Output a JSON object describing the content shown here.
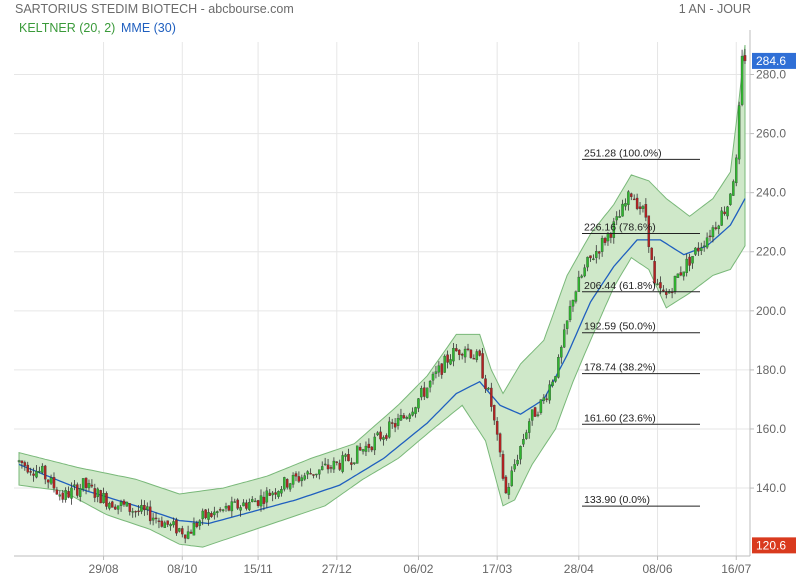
{
  "header": {
    "title": "SARTORIUS STEDIM BIOTECH - abcbourse.com",
    "period": "1 AN - JOUR"
  },
  "legend": {
    "keltner": {
      "label": "KELTNER (20, 2)",
      "color": "#3a9a3a"
    },
    "ema": {
      "label": "MME (30)",
      "color": "#1f5fbf"
    }
  },
  "colors": {
    "up": "#2fb52f",
    "down": "#b22222",
    "band_fill": "#cfe8c9",
    "band_line": "#79b879",
    "ema_line": "#1f5fbf",
    "price_tag_high": "#2f6fd6",
    "price_tag_low": "#d93a1e",
    "grid": "#e6e6e6"
  },
  "chart_data": {
    "type": "candlestick",
    "title": "SARTORIUS STEDIM BIOTECH",
    "period": "1 AN - JOUR",
    "ylim": [
      117,
      291
    ],
    "yticks": [
      140,
      160,
      180,
      200,
      220,
      240,
      260,
      280
    ],
    "ytick_labels": [
      "140.0",
      "160.0",
      "180.0",
      "200.0",
      "220.0",
      "240.0",
      "260.0",
      "280.0"
    ],
    "xticks": [
      {
        "label": "29/08",
        "index": 29
      },
      {
        "label": "08/10",
        "index": 56
      },
      {
        "label": "15/11",
        "index": 82
      },
      {
        "label": "27/12",
        "index": 109
      },
      {
        "label": "06/02",
        "index": 137
      },
      {
        "label": "17/03",
        "index": 164
      },
      {
        "label": "28/04",
        "index": 192
      },
      {
        "label": "08/06",
        "index": 219
      },
      {
        "label": "16/07",
        "index": 246
      }
    ],
    "n_sessions": 250,
    "price_labels": {
      "high": "284.6",
      "low": "120.6"
    },
    "anchors": [
      [
        0,
        149
      ],
      [
        8,
        145
      ],
      [
        15,
        137
      ],
      [
        22,
        141
      ],
      [
        30,
        136
      ],
      [
        38,
        133
      ],
      [
        45,
        131
      ],
      [
        52,
        127
      ],
      [
        58,
        125
      ],
      [
        63,
        130
      ],
      [
        72,
        133
      ],
      [
        82,
        136
      ],
      [
        92,
        142
      ],
      [
        100,
        145
      ],
      [
        112,
        149
      ],
      [
        122,
        156
      ],
      [
        132,
        164
      ],
      [
        140,
        174
      ],
      [
        148,
        185
      ],
      [
        153,
        188
      ],
      [
        158,
        183
      ],
      [
        162,
        168
      ],
      [
        165,
        150
      ],
      [
        167,
        138
      ],
      [
        170,
        148
      ],
      [
        175,
        163
      ],
      [
        180,
        170
      ],
      [
        185,
        182
      ],
      [
        190,
        205
      ],
      [
        195,
        216
      ],
      [
        200,
        223
      ],
      [
        205,
        230
      ],
      [
        210,
        240
      ],
      [
        215,
        232
      ],
      [
        218,
        208
      ],
      [
        222,
        205
      ],
      [
        226,
        212
      ],
      [
        232,
        220
      ],
      [
        238,
        228
      ],
      [
        243,
        236
      ],
      [
        246,
        250
      ],
      [
        248,
        284.6
      ]
    ],
    "keltner": {
      "period": 20,
      "multiplier": 2,
      "upper": [
        [
          0,
          152
        ],
        [
          20,
          147
        ],
        [
          40,
          143
        ],
        [
          55,
          138
        ],
        [
          70,
          140
        ],
        [
          85,
          144
        ],
        [
          100,
          150
        ],
        [
          115,
          155
        ],
        [
          130,
          168
        ],
        [
          140,
          178
        ],
        [
          150,
          192
        ],
        [
          158,
          192
        ],
        [
          162,
          180
        ],
        [
          166,
          172
        ],
        [
          172,
          182
        ],
        [
          180,
          190
        ],
        [
          188,
          212
        ],
        [
          196,
          226
        ],
        [
          204,
          236
        ],
        [
          210,
          246
        ],
        [
          216,
          244
        ],
        [
          222,
          238
        ],
        [
          230,
          232
        ],
        [
          238,
          238
        ],
        [
          244,
          247
        ],
        [
          247,
          272
        ],
        [
          249,
          290
        ]
      ],
      "lower": [
        [
          0,
          141
        ],
        [
          15,
          139
        ],
        [
          30,
          131
        ],
        [
          45,
          126
        ],
        [
          55,
          121
        ],
        [
          63,
          120
        ],
        [
          75,
          124
        ],
        [
          90,
          129
        ],
        [
          105,
          134
        ],
        [
          118,
          143
        ],
        [
          130,
          150
        ],
        [
          142,
          160
        ],
        [
          152,
          168
        ],
        [
          160,
          156
        ],
        [
          166,
          134
        ],
        [
          170,
          136
        ],
        [
          176,
          148
        ],
        [
          184,
          160
        ],
        [
          190,
          176
        ],
        [
          196,
          190
        ],
        [
          204,
          208
        ],
        [
          210,
          218
        ],
        [
          216,
          214
        ],
        [
          222,
          201
        ],
        [
          230,
          206
        ],
        [
          238,
          212
        ],
        [
          244,
          214
        ],
        [
          249,
          222
        ]
      ]
    },
    "ema": {
      "period": 30,
      "values": [
        [
          0,
          148
        ],
        [
          20,
          140
        ],
        [
          40,
          134
        ],
        [
          55,
          129
        ],
        [
          65,
          128
        ],
        [
          80,
          132
        ],
        [
          95,
          136
        ],
        [
          110,
          141
        ],
        [
          125,
          150
        ],
        [
          140,
          162
        ],
        [
          150,
          172
        ],
        [
          158,
          176
        ],
        [
          165,
          168
        ],
        [
          172,
          165
        ],
        [
          180,
          170
        ],
        [
          188,
          185
        ],
        [
          196,
          203
        ],
        [
          204,
          215
        ],
        [
          212,
          224
        ],
        [
          220,
          224
        ],
        [
          228,
          219
        ],
        [
          236,
          222
        ],
        [
          244,
          229
        ],
        [
          249,
          238
        ]
      ]
    },
    "fibonacci": [
      {
        "value": 251.28,
        "label": "251.28",
        "pct": "(100.0%)"
      },
      {
        "value": 226.16,
        "label": "226.16",
        "pct": "(78.6%)"
      },
      {
        "value": 206.44,
        "label": "206.44",
        "pct": "(61.8%)"
      },
      {
        "value": 192.59,
        "label": "192.59",
        "pct": "(50.0%)"
      },
      {
        "value": 178.74,
        "label": "178.74",
        "pct": "(38.2%)"
      },
      {
        "value": 161.6,
        "label": "161.60",
        "pct": "(23.6%)"
      },
      {
        "value": 133.9,
        "label": "133.90",
        "pct": "(0.0%)"
      }
    ],
    "grid": true
  }
}
